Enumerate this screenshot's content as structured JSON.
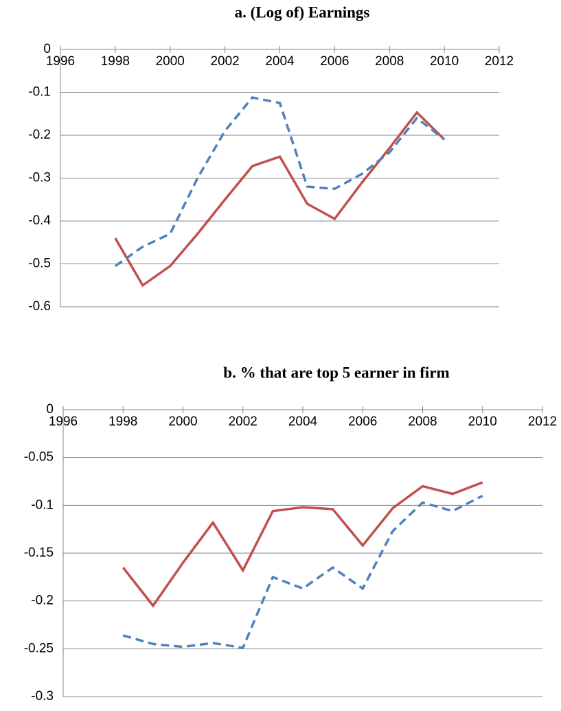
{
  "chart_data": [
    {
      "type": "line",
      "title": "a. (Log of) Earnings",
      "x": [
        1998,
        1999,
        2000,
        2001,
        2002,
        2003,
        2004,
        2005,
        2006,
        2007,
        2008,
        2009,
        2010
      ],
      "series": [
        {
          "color": "#c0504d",
          "dash": false,
          "values": [
            -0.44,
            -0.55,
            -0.505,
            -0.43,
            -0.35,
            -0.272,
            -0.25,
            -0.36,
            -0.395,
            -0.31,
            -0.23,
            -0.147,
            -0.21
          ]
        },
        {
          "color": "#4f81bd",
          "dash": true,
          "values": [
            -0.505,
            -0.46,
            -0.43,
            -0.3,
            -0.19,
            -0.112,
            -0.125,
            -0.32,
            -0.325,
            -0.29,
            -0.24,
            -0.16,
            -0.21
          ]
        }
      ],
      "xlim": [
        1996,
        2012
      ],
      "xticks": [
        1996,
        1998,
        2000,
        2002,
        2004,
        2006,
        2008,
        2010,
        2012
      ],
      "ylim": [
        -0.6,
        0
      ],
      "yticks": [
        0,
        -0.1,
        -0.2,
        -0.3,
        -0.4,
        -0.5,
        -0.6
      ],
      "grid": true
    },
    {
      "type": "line",
      "title": "b. % that are top 5 earner in firm",
      "x": [
        1998,
        1999,
        2000,
        2001,
        2002,
        2003,
        2004,
        2005,
        2006,
        2007,
        2008,
        2009,
        2010
      ],
      "series": [
        {
          "color": "#c0504d",
          "dash": false,
          "values": [
            -0.165,
            -0.205,
            -0.16,
            -0.118,
            -0.168,
            -0.106,
            -0.102,
            -0.104,
            -0.142,
            -0.103,
            -0.08,
            -0.088,
            -0.076
          ]
        },
        {
          "color": "#4f81bd",
          "dash": true,
          "values": [
            -0.236,
            -0.245,
            -0.248,
            -0.244,
            -0.249,
            -0.175,
            -0.187,
            -0.165,
            -0.187,
            -0.127,
            -0.097,
            -0.106,
            -0.09
          ]
        }
      ],
      "xlim": [
        1996,
        2012
      ],
      "xticks": [
        1996,
        1998,
        2000,
        2002,
        2004,
        2006,
        2008,
        2010,
        2012
      ],
      "ylim": [
        -0.3,
        0
      ],
      "yticks": [
        0,
        -0.05,
        -0.1,
        -0.15,
        -0.2,
        -0.25,
        -0.3
      ],
      "grid": true
    }
  ]
}
